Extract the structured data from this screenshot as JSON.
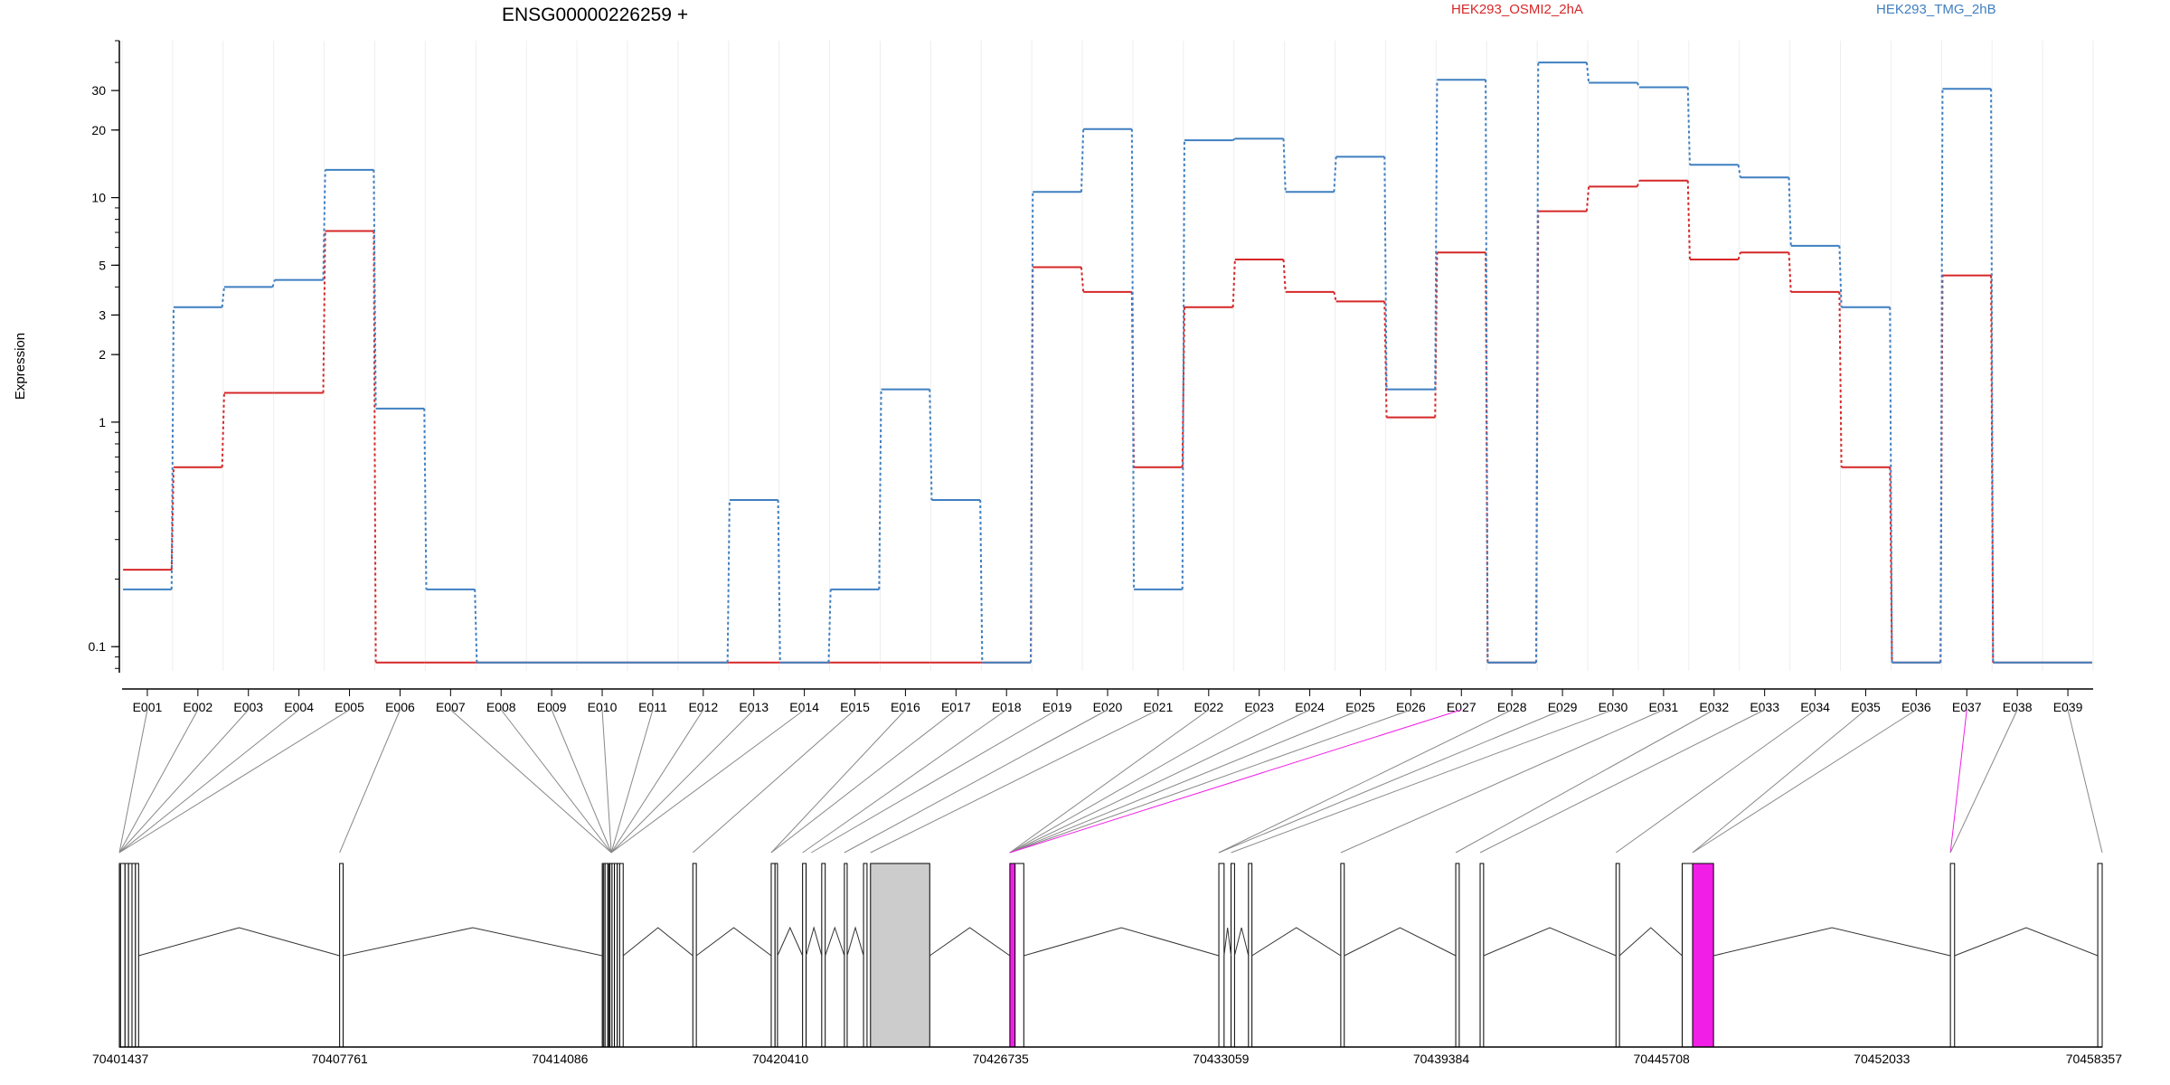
{
  "chart_data": {
    "type": "line",
    "title": "ENSG00000226259 +",
    "ylabel": "Expression",
    "xlabel": "",
    "y_scale": "log",
    "ylim": [
      0.078,
      50
    ],
    "y_ticks": [
      "0.1",
      "1",
      "2",
      "3",
      "5",
      "10",
      "20",
      "30"
    ],
    "grid": "vertical, light",
    "legend_placement": "top",
    "categories": [
      "E001",
      "E002",
      "E003",
      "E004",
      "E005",
      "E006",
      "E007",
      "E008",
      "E009",
      "E010",
      "E011",
      "E012",
      "E013",
      "E014",
      "E015",
      "E016",
      "E017",
      "E018",
      "E019",
      "E020",
      "E021",
      "E022",
      "E023",
      "E024",
      "E025",
      "E026",
      "E027",
      "E028",
      "E029",
      "E030",
      "E031",
      "E032",
      "E033",
      "E034",
      "E035",
      "E036",
      "E037",
      "E038",
      "E039"
    ],
    "series": [
      {
        "name": "HEK293_OSMI2_2hA",
        "color": "#d62728",
        "values": [
          0.22,
          0.63,
          1.35,
          1.35,
          7.1,
          0.085,
          0.085,
          0.085,
          0.085,
          0.085,
          0.085,
          0.085,
          0.085,
          0.085,
          0.085,
          0.085,
          0.085,
          0.085,
          4.9,
          3.8,
          0.63,
          3.25,
          5.3,
          3.8,
          3.45,
          1.05,
          5.7,
          0.085,
          8.7,
          11.2,
          11.9,
          5.3,
          5.7,
          3.8,
          0.63,
          0.085,
          4.5,
          0.085,
          0.085
        ]
      },
      {
        "name": "HEK293_TMG_2hB",
        "color": "#3f7fc1",
        "values": [
          0.18,
          3.25,
          4.0,
          4.3,
          13.3,
          1.15,
          0.18,
          0.085,
          0.085,
          0.085,
          0.085,
          0.085,
          0.45,
          0.085,
          0.18,
          1.4,
          0.45,
          0.085,
          10.6,
          20.2,
          0.18,
          18.0,
          18.3,
          10.6,
          15.2,
          1.4,
          33.5,
          0.085,
          40.0,
          32.5,
          31.0,
          14.0,
          12.3,
          6.1,
          3.25,
          0.085,
          30.5,
          0.085,
          0.085
        ]
      }
    ],
    "genomic_axis": {
      "tick_labels": [
        "70401437",
        "70407761",
        "70414086",
        "70420410",
        "70426735",
        "70433059",
        "70439384",
        "70445708",
        "70452033",
        "70458357"
      ],
      "range": [
        70401437,
        70458357
      ]
    },
    "highlight_color": "#f01ee6"
  }
}
